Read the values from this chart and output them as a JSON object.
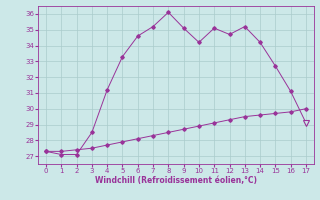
{
  "x": [
    0,
    1,
    2,
    3,
    4,
    5,
    6,
    7,
    8,
    9,
    10,
    11,
    12,
    13,
    14,
    15,
    16,
    17
  ],
  "upper_y": [
    27.3,
    27.1,
    27.1,
    28.5,
    31.2,
    33.3,
    34.6,
    35.2,
    36.1,
    35.1,
    34.2,
    35.1,
    34.7,
    35.2,
    34.2,
    32.7,
    31.1,
    29.1
  ],
  "lower_y": [
    27.3,
    27.3,
    27.4,
    27.5,
    27.7,
    27.9,
    28.1,
    28.3,
    28.5,
    28.7,
    28.9,
    29.1,
    29.3,
    29.5,
    29.6,
    29.7,
    29.8,
    30.0
  ],
  "line_color": "#993399",
  "bg_color": "#cce8e8",
  "grid_color": "#aacccc",
  "xlabel": "Windchill (Refroidissement éolien,°C)",
  "xlim": [
    -0.5,
    17.5
  ],
  "ylim": [
    26.5,
    36.5
  ],
  "yticks": [
    27,
    28,
    29,
    30,
    31,
    32,
    33,
    34,
    35,
    36
  ],
  "xticks": [
    0,
    1,
    2,
    3,
    4,
    5,
    6,
    7,
    8,
    9,
    10,
    11,
    12,
    13,
    14,
    15,
    16,
    17
  ]
}
